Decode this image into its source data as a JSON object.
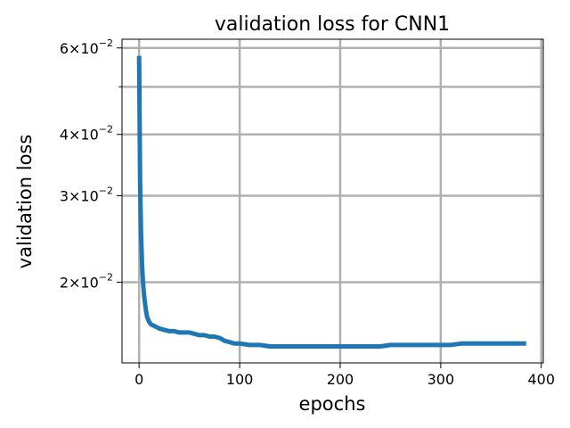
{
  "chart_data": {
    "type": "line",
    "title": "validation loss for CNN1",
    "xlabel": "epochs",
    "ylabel": "validation loss",
    "xlim": [
      -17,
      402
    ],
    "ylim": [
      0.0137,
      0.0625
    ],
    "yscale": "log",
    "grid": true,
    "x_ticks": [
      {
        "value": 0,
        "label": "0"
      },
      {
        "value": 100,
        "label": "100"
      },
      {
        "value": 200,
        "label": "200"
      },
      {
        "value": 300,
        "label": "300"
      },
      {
        "value": 400,
        "label": "400"
      }
    ],
    "y_ticks_major": [
      {
        "value": 0.02,
        "mantissa": "2",
        "base": "10",
        "exponent": "−2"
      },
      {
        "value": 0.03,
        "mantissa": "3",
        "base": "10",
        "exponent": "−2"
      },
      {
        "value": 0.04,
        "mantissa": "4",
        "base": "10",
        "exponent": "−2"
      },
      {
        "value": 0.06,
        "mantissa": "6",
        "base": "10",
        "exponent": "−2"
      }
    ],
    "y_ticks_minor": [
      0.05
    ],
    "line_color": "#1f77b4",
    "grid_color": "#b0b0b0",
    "series": [
      {
        "x": [
          0,
          1,
          2,
          3,
          4,
          5,
          6,
          7,
          8,
          10,
          12,
          15,
          20,
          25,
          30,
          35,
          40,
          45,
          50,
          55,
          60,
          65,
          70,
          75,
          80,
          85,
          90,
          95,
          100,
          110,
          120,
          130,
          140,
          150,
          160,
          170,
          180,
          190,
          200,
          210,
          220,
          230,
          240,
          250,
          260,
          270,
          280,
          290,
          300,
          310,
          320,
          330,
          340,
          350,
          360,
          370,
          380,
          385
        ],
        "y": [
          0.0578,
          0.032,
          0.025,
          0.0215,
          0.0198,
          0.0188,
          0.018,
          0.0174,
          0.017,
          0.0166,
          0.0164,
          0.0163,
          0.0161,
          0.016,
          0.0159,
          0.0159,
          0.0158,
          0.0158,
          0.0158,
          0.0157,
          0.0156,
          0.0156,
          0.0155,
          0.0155,
          0.0154,
          0.0152,
          0.0151,
          0.015,
          0.015,
          0.0149,
          0.0149,
          0.0148,
          0.0148,
          0.0148,
          0.0148,
          0.0148,
          0.0148,
          0.0148,
          0.0148,
          0.0148,
          0.0148,
          0.0148,
          0.0148,
          0.0149,
          0.0149,
          0.0149,
          0.0149,
          0.0149,
          0.0149,
          0.0149,
          0.015,
          0.015,
          0.015,
          0.015,
          0.015,
          0.015,
          0.015,
          0.015
        ]
      }
    ]
  }
}
